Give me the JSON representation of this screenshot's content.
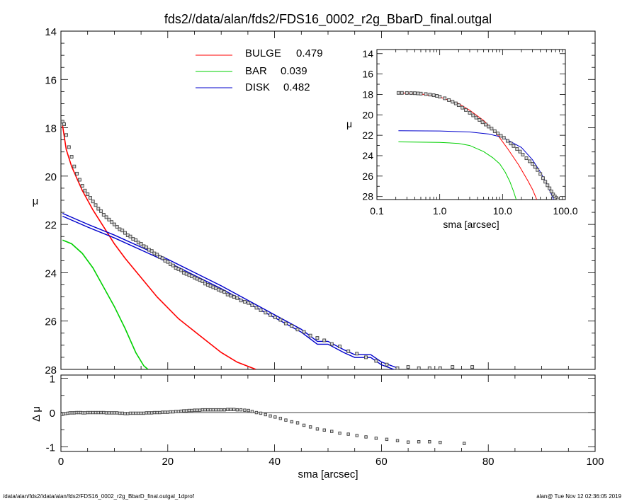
{
  "title": "fds2//data/alan/fds2/FDS16_0002_r2g_BbarD_final.outgal",
  "footer_left": "/data/alan/fds2//data/alan/fds2/FDS16_0002_r2g_BbarD_final.outgal_1dprof",
  "footer_right": "alan@  Tue Nov 12 02:36:05 2019",
  "colors": {
    "bulge": "#ff0000",
    "bar": "#00d000",
    "disk": "#0000cc",
    "data": "#505050"
  },
  "chart_data": [
    {
      "type": "line",
      "panel": "main",
      "xlabel": "sma [arcsec]",
      "ylabel": "μ",
      "xlim": [
        0,
        100
      ],
      "ylim": [
        28,
        14
      ],
      "xticks": [
        "0",
        "20",
        "40",
        "60",
        "80",
        "100"
      ],
      "yticks": [
        "14",
        "16",
        "18",
        "20",
        "22",
        "24",
        "26",
        "28"
      ],
      "legend": [
        {
          "name": "BULGE",
          "value": "0.479",
          "color": "#ff0000"
        },
        {
          "name": "BAR",
          "value": "0.039",
          "color": "#00d000"
        },
        {
          "name": "DISK",
          "value": "0.482",
          "color": "#0000cc"
        }
      ],
      "legend_position": "top-center",
      "series": [
        {
          "name": "BULGE",
          "color": "#ff0000",
          "x": [
            0.3,
            1,
            2,
            3,
            4,
            6,
            8,
            10,
            12,
            15,
            18,
            22,
            26,
            30,
            33,
            36.5
          ],
          "y": [
            17.9,
            18.9,
            19.6,
            20.1,
            20.6,
            21.4,
            22.1,
            22.8,
            23.4,
            24.2,
            25.0,
            25.9,
            26.6,
            27.3,
            27.7,
            28.0
          ]
        },
        {
          "name": "BAR",
          "color": "#00d000",
          "x": [
            0.3,
            2,
            4,
            6,
            8,
            10,
            12,
            14,
            15.5,
            16.3
          ],
          "y": [
            22.65,
            22.8,
            23.2,
            23.8,
            24.6,
            25.4,
            26.3,
            27.3,
            27.85,
            28.0
          ]
        },
        {
          "name": "DISK",
          "color": "#0000cc",
          "band": true,
          "x": [
            0.3,
            5,
            10,
            15,
            20,
            25,
            30,
            35,
            40,
            45,
            48,
            50,
            53,
            55,
            58,
            60,
            63
          ],
          "y": [
            21.6,
            22.05,
            22.5,
            23.0,
            23.5,
            24.05,
            24.6,
            25.2,
            25.8,
            26.4,
            26.9,
            26.9,
            27.25,
            27.45,
            27.45,
            27.75,
            28.0
          ]
        }
      ],
      "points": {
        "name": "data",
        "marker": "square",
        "x": [
          0.3,
          0.6,
          1.0,
          1.5,
          2.0,
          2.5,
          3.0,
          3.5,
          4.0,
          4.5,
          5,
          5.5,
          6,
          6.5,
          7,
          7.5,
          8,
          8.5,
          9,
          9.5,
          10,
          10.5,
          11,
          11.5,
          12,
          12.5,
          13,
          13.5,
          14,
          14.5,
          15,
          15.5,
          16,
          16.5,
          17,
          17.5,
          18,
          18.5,
          19,
          19.5,
          20,
          20.5,
          21,
          21.5,
          22,
          22.5,
          23,
          23.5,
          24,
          24.5,
          25,
          25.5,
          26,
          26.5,
          27,
          27.5,
          28,
          28.5,
          29,
          29.5,
          30,
          30.6,
          31.2,
          31.8,
          32.4,
          33,
          33.7,
          34.4,
          35.1,
          35.8,
          36.6,
          37.4,
          38.3,
          39.2,
          40.1,
          41.1,
          42.1,
          43.2,
          44.3,
          45.5,
          46.7,
          48.0,
          49.3,
          50.7,
          52.2,
          53.8,
          55.4,
          57.1,
          59.0,
          61.0,
          63.0,
          65.0,
          67.0,
          69.0,
          71.0,
          73.3,
          77.0
        ],
        "y": [
          17.75,
          17.85,
          18.3,
          18.8,
          19.2,
          19.6,
          19.9,
          20.15,
          20.4,
          20.6,
          20.75,
          20.9,
          21.05,
          21.2,
          21.35,
          21.45,
          21.6,
          21.7,
          21.8,
          21.9,
          22.0,
          22.1,
          22.2,
          22.25,
          22.35,
          22.45,
          22.5,
          22.6,
          22.65,
          22.75,
          22.8,
          22.9,
          22.95,
          23.05,
          23.1,
          23.2,
          23.25,
          23.35,
          23.4,
          23.5,
          23.55,
          23.65,
          23.7,
          23.8,
          23.85,
          23.9,
          24.0,
          24.05,
          24.1,
          24.15,
          24.2,
          24.25,
          24.3,
          24.35,
          24.45,
          24.5,
          24.55,
          24.6,
          24.65,
          24.7,
          24.75,
          24.8,
          24.9,
          24.95,
          25.0,
          25.05,
          25.15,
          25.2,
          25.25,
          25.35,
          25.45,
          25.55,
          25.65,
          25.75,
          25.85,
          25.95,
          26.1,
          26.2,
          26.35,
          26.45,
          26.6,
          26.7,
          26.8,
          26.95,
          27.05,
          27.25,
          27.35,
          27.5,
          27.65,
          27.8,
          27.95,
          27.9,
          27.95,
          27.95,
          27.95,
          27.9,
          27.9
        ]
      }
    },
    {
      "type": "scatter",
      "panel": "residual",
      "xlabel": "sma [arcsec]",
      "ylabel": "Δ μ",
      "xlim": [
        0,
        100
      ],
      "ylim": [
        -1.1,
        1.1
      ],
      "xticks": [
        "0",
        "20",
        "40",
        "60",
        "80",
        "100"
      ],
      "yticks": [
        "-1",
        "0",
        "1"
      ],
      "reference_line": 0,
      "points": {
        "name": "residual",
        "marker": "square",
        "x": [
          0.2,
          0.5,
          0.9,
          1.3,
          1.7,
          2.1,
          2.5,
          2.9,
          3.3,
          3.7,
          4.1,
          4.5,
          5,
          5.5,
          6,
          6.5,
          7,
          7.5,
          8,
          8.5,
          9,
          9.5,
          10,
          10.5,
          11,
          11.5,
          12,
          12.5,
          13,
          13.5,
          14,
          14.5,
          15,
          15.5,
          16,
          16.5,
          17,
          17.5,
          18,
          18.5,
          19,
          19.5,
          20,
          20.5,
          21,
          21.5,
          22,
          22.5,
          23,
          23.5,
          24,
          24.5,
          25,
          25.5,
          26,
          26.5,
          27,
          27.5,
          28,
          28.5,
          29,
          29.5,
          30,
          30.6,
          31.2,
          31.8,
          32.4,
          33,
          33.7,
          34.4,
          35.1,
          35.8,
          36.6,
          37.4,
          38.3,
          39.2,
          40.1,
          41.1,
          42.1,
          43.2,
          44.3,
          45.5,
          46.7,
          48.0,
          49.3,
          50.7,
          52.2,
          53.8,
          55.4,
          57.1,
          59.0,
          61.0,
          63.0,
          65.0,
          67.0,
          69.0,
          71.0,
          75.5
        ],
        "y": [
          -0.05,
          -0.04,
          -0.03,
          -0.02,
          -0.01,
          -0.01,
          -0.01,
          0.0,
          0.0,
          0.0,
          -0.01,
          -0.01,
          0.0,
          0.0,
          0.0,
          0.0,
          0.0,
          0.0,
          0.0,
          -0.01,
          -0.01,
          -0.01,
          -0.01,
          -0.01,
          -0.02,
          -0.02,
          -0.03,
          -0.03,
          -0.02,
          -0.02,
          -0.02,
          -0.02,
          -0.02,
          -0.02,
          -0.01,
          -0.01,
          -0.01,
          0.0,
          0.0,
          0.0,
          0.01,
          0.01,
          0.01,
          0.02,
          0.02,
          0.03,
          0.03,
          0.04,
          0.05,
          0.05,
          0.06,
          0.06,
          0.07,
          0.07,
          0.07,
          0.08,
          0.08,
          0.08,
          0.08,
          0.08,
          0.08,
          0.08,
          0.08,
          0.08,
          0.09,
          0.09,
          0.09,
          0.08,
          0.08,
          0.07,
          0.06,
          0.03,
          0.0,
          -0.02,
          -0.06,
          -0.1,
          -0.13,
          -0.17,
          -0.22,
          -0.27,
          -0.3,
          -0.37,
          -0.42,
          -0.48,
          -0.51,
          -0.55,
          -0.6,
          -0.63,
          -0.67,
          -0.71,
          -0.75,
          -0.78,
          -0.82,
          -0.86,
          -0.85,
          -0.85,
          -0.87,
          -0.9
        ]
      }
    },
    {
      "type": "line",
      "panel": "inset",
      "xscale": "log",
      "xlabel": "sma [arcsec]",
      "ylabel": "μ",
      "xlim": [
        0.1,
        100
      ],
      "ylim": [
        28.3,
        13.6
      ],
      "xticks": [
        "0.1",
        "1.0",
        "10.0",
        "100.0"
      ],
      "yticks": [
        "14",
        "16",
        "18",
        "20",
        "22",
        "24",
        "26",
        "28"
      ],
      "series": [
        {
          "name": "BULGE",
          "color": "#ff0000",
          "x": [
            0.22,
            0.5,
            1,
            2,
            3,
            5,
            8,
            12,
            18,
            25,
            30,
            35
          ],
          "y": [
            17.85,
            17.95,
            18.25,
            18.9,
            19.55,
            20.55,
            21.8,
            23.3,
            24.9,
            26.4,
            27.3,
            28.3
          ]
        },
        {
          "name": "BAR",
          "color": "#00d000",
          "x": [
            0.22,
            1,
            2,
            3,
            5,
            7,
            9,
            11,
            13,
            15,
            16.5
          ],
          "y": [
            22.65,
            22.7,
            22.8,
            23.0,
            23.6,
            24.2,
            24.8,
            25.6,
            26.5,
            27.5,
            28.3
          ]
        },
        {
          "name": "DISK",
          "color": "#0000cc",
          "x": [
            0.22,
            1,
            3,
            6,
            10,
            20,
            30,
            40,
            50,
            60,
            65
          ],
          "y": [
            21.55,
            21.58,
            21.68,
            21.88,
            22.2,
            23.2,
            24.4,
            25.6,
            26.7,
            27.8,
            28.3
          ]
        }
      ],
      "points": {
        "name": "data",
        "marker": "square",
        "x": [
          0.22,
          0.25,
          0.3,
          0.35,
          0.4,
          0.45,
          0.5,
          0.6,
          0.7,
          0.8,
          0.9,
          1.0,
          1.2,
          1.4,
          1.6,
          1.8,
          2.0,
          2.3,
          2.6,
          3.0,
          3.4,
          3.8,
          4.3,
          4.8,
          5.4,
          6.0,
          6.7,
          7.5,
          8.4,
          9.4,
          10.5,
          12,
          13.5,
          15,
          17,
          19,
          21,
          24,
          27,
          30,
          33,
          36,
          40,
          44,
          48,
          52,
          56,
          60,
          64,
          68,
          72,
          76
        ],
        "y": [
          17.85,
          17.85,
          17.86,
          17.87,
          17.88,
          17.9,
          17.92,
          17.96,
          18.02,
          18.08,
          18.14,
          18.22,
          18.38,
          18.55,
          18.72,
          18.88,
          19.05,
          19.3,
          19.52,
          19.8,
          20.05,
          20.27,
          20.5,
          20.72,
          20.95,
          21.15,
          21.35,
          21.6,
          21.82,
          22.05,
          22.25,
          22.55,
          22.8,
          23.05,
          23.35,
          23.6,
          23.9,
          24.25,
          24.55,
          24.8,
          25.1,
          25.4,
          25.8,
          26.2,
          26.55,
          26.9,
          27.2,
          27.5,
          27.8,
          28.0,
          28.15,
          28.3
        ]
      }
    }
  ]
}
